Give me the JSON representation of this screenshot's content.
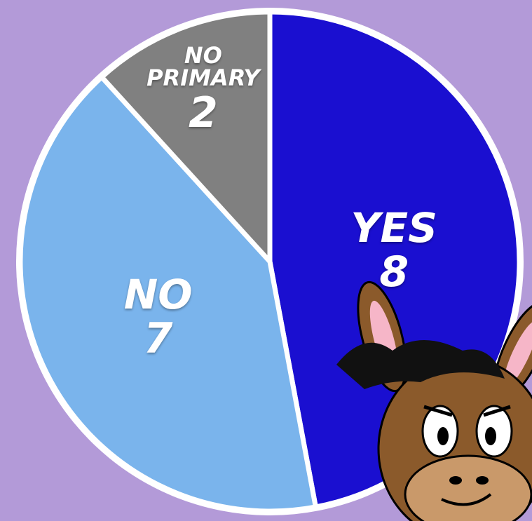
{
  "chart_data": {
    "type": "pie",
    "categories": [
      "YES",
      "NO",
      "NO PRIMARY"
    ],
    "values": [
      8,
      7,
      2
    ],
    "colors": [
      "#1a0fd0",
      "#7ab4ec",
      "#808080"
    ]
  }
}
